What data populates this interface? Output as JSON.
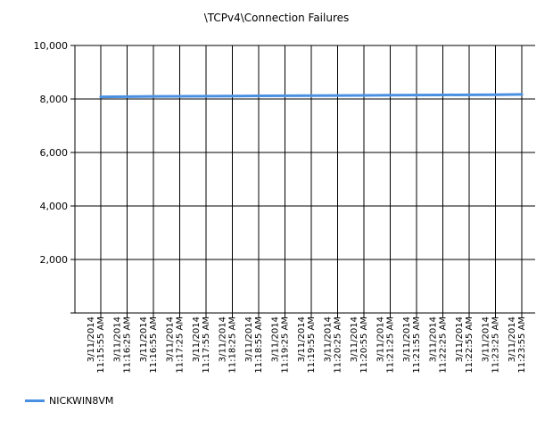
{
  "chart_data": {
    "type": "line",
    "title": "\\TCPv4\\Connection Failures",
    "xlabel": "",
    "ylabel": "",
    "ylim": [
      0,
      10000
    ],
    "yticks": [
      0,
      2000,
      4000,
      6000,
      8000,
      10000
    ],
    "ytick_labels": [
      "",
      "2,000",
      "4,000",
      "6,000",
      "8,000",
      "10,000"
    ],
    "categories": [
      "3/11/2014 11:15:55 AM",
      "3/11/2014 11:16:25 AM",
      "3/11/2014 11:16:55 AM",
      "3/11/2014 11:17:25 AM",
      "3/11/2014 11:17:55 AM",
      "3/11/2014 11:18:25 AM",
      "3/11/2014 11:18:55 AM",
      "3/11/2014 11:19:25 AM",
      "3/11/2014 11:19:55 AM",
      "3/11/2014 11:20:25 AM",
      "3/11/2014 11:20:55 AM",
      "3/11/2014 11:21:25 AM",
      "3/11/2014 11:21:55 AM",
      "3/11/2014 11:22:25 AM",
      "3/11/2014 11:22:55 AM",
      "3/11/2014 11:23:25 AM",
      "3/11/2014 11:23:55 AM"
    ],
    "series": [
      {
        "name": "NICKWIN8VM",
        "color": "#4a90e2",
        "values": [
          8080,
          8088,
          8095,
          8100,
          8105,
          8110,
          8115,
          8120,
          8125,
          8130,
          8135,
          8140,
          8145,
          8150,
          8155,
          8160,
          8170
        ]
      }
    ],
    "grid": true,
    "legend_position": "bottom-left"
  }
}
